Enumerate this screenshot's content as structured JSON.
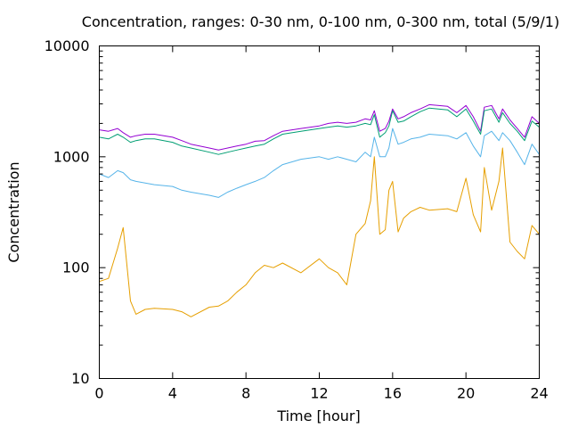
{
  "chart_data": {
    "type": "line",
    "title": "Concentration, ranges: 0-30 nm, 0-100 nm, 0-300 nm, total (5/9/1)",
    "xlabel": "Time [hour]",
    "ylabel": "Concentration",
    "xlim": [
      0,
      24
    ],
    "ylim": [
      10,
      10000
    ],
    "yscale": "log",
    "grid": false,
    "x_ticks": [
      0,
      4,
      8,
      12,
      16,
      20,
      24
    ],
    "x_tick_labels": [
      "0",
      "4",
      "8",
      "12",
      "16",
      "20",
      "24"
    ],
    "y_ticks": [
      10,
      100,
      1000,
      10000
    ],
    "y_tick_labels": [
      "10",
      "100",
      "1000",
      "10000"
    ],
    "x": [
      0,
      0.5,
      1,
      1.3,
      1.7,
      2,
      2.5,
      3,
      4,
      4.5,
      5,
      6,
      6.5,
      7,
      7.5,
      8,
      8.5,
      9,
      9.5,
      10,
      11,
      12,
      12.5,
      13,
      13.5,
      14,
      14.5,
      14.8,
      15,
      15.3,
      15.6,
      15.8,
      16,
      16.3,
      16.6,
      17,
      17.5,
      18,
      19,
      19.5,
      20,
      20.4,
      20.8,
      21,
      21.4,
      21.8,
      22,
      22.4,
      22.8,
      23.2,
      23.6,
      24
    ],
    "series": [
      {
        "color": "#9400d3",
        "values": [
          1750,
          1700,
          1800,
          1650,
          1500,
          1550,
          1600,
          1600,
          1500,
          1400,
          1300,
          1200,
          1150,
          1200,
          1250,
          1300,
          1380,
          1400,
          1550,
          1700,
          1800,
          1900,
          2000,
          2050,
          2000,
          2050,
          2200,
          2150,
          2600,
          1700,
          1800,
          2100,
          2700,
          2200,
          2300,
          2500,
          2700,
          2950,
          2850,
          2500,
          2900,
          2300,
          1700,
          2800,
          2900,
          2200,
          2700,
          2150,
          1800,
          1500,
          2300,
          2000
        ]
      },
      {
        "color": "#009e73",
        "values": [
          1500,
          1450,
          1600,
          1500,
          1350,
          1400,
          1450,
          1450,
          1350,
          1250,
          1200,
          1100,
          1050,
          1100,
          1150,
          1200,
          1250,
          1300,
          1450,
          1600,
          1700,
          1800,
          1850,
          1900,
          1850,
          1900,
          2000,
          1950,
          2400,
          1500,
          1650,
          1900,
          2600,
          2050,
          2100,
          2300,
          2550,
          2750,
          2650,
          2300,
          2700,
          2100,
          1600,
          2600,
          2700,
          2050,
          2500,
          2000,
          1700,
          1400,
          2100,
          1850
        ]
      },
      {
        "color": "#56b4e9",
        "values": [
          700,
          650,
          750,
          720,
          620,
          600,
          580,
          560,
          540,
          500,
          480,
          450,
          430,
          480,
          520,
          560,
          600,
          650,
          750,
          850,
          950,
          1000,
          950,
          1000,
          950,
          900,
          1100,
          1000,
          1500,
          1000,
          1000,
          1200,
          1800,
          1300,
          1350,
          1450,
          1500,
          1600,
          1550,
          1450,
          1650,
          1250,
          1000,
          1550,
          1700,
          1400,
          1650,
          1400,
          1100,
          850,
          1300,
          1050
        ]
      },
      {
        "color": "#e69f00",
        "values": [
          75,
          80,
          150,
          230,
          50,
          38,
          42,
          43,
          42,
          40,
          36,
          44,
          45,
          50,
          60,
          70,
          90,
          105,
          100,
          110,
          90,
          120,
          100,
          90,
          70,
          200,
          250,
          400,
          1000,
          200,
          220,
          500,
          600,
          210,
          280,
          320,
          350,
          330,
          340,
          320,
          640,
          300,
          210,
          800,
          330,
          600,
          1200,
          170,
          140,
          120,
          240,
          200
        ]
      }
    ]
  }
}
